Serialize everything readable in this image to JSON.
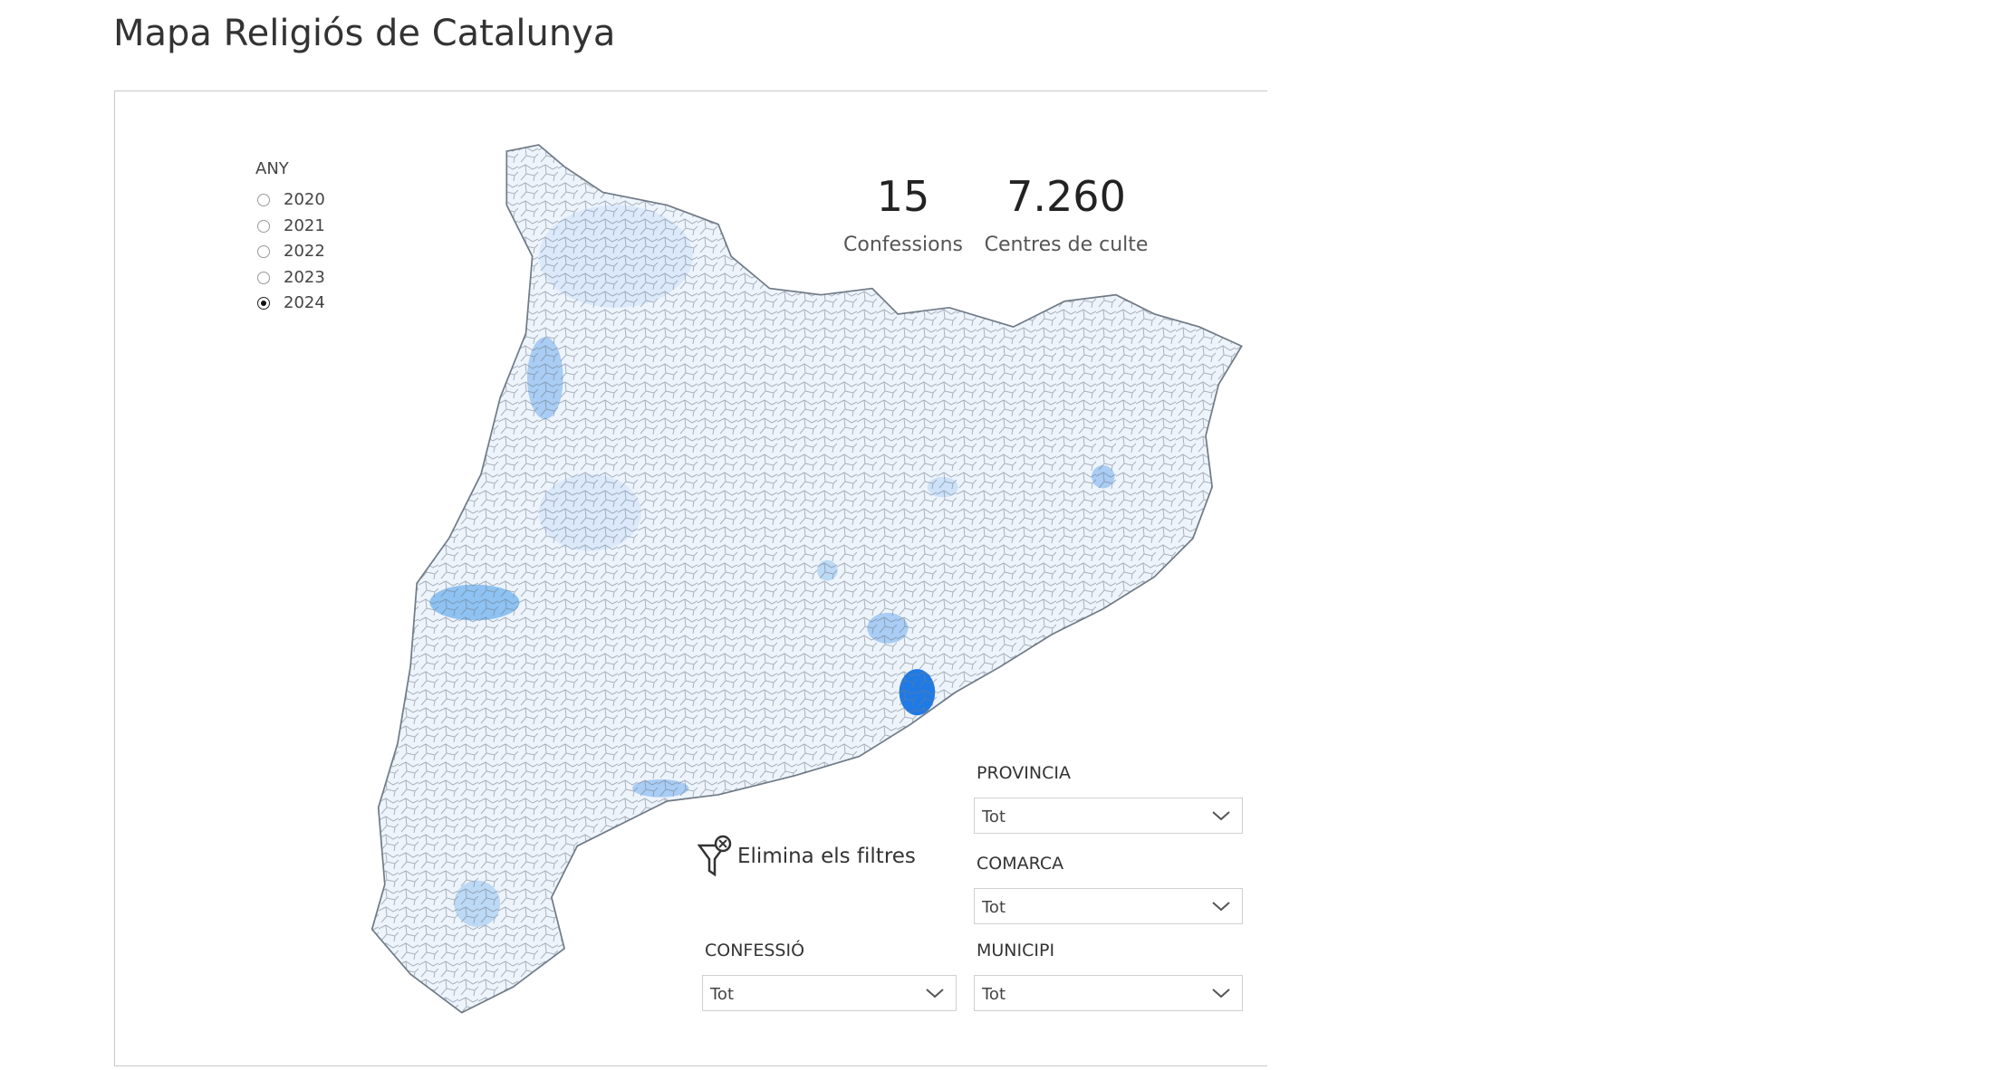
{
  "header": {
    "title": "Mapa Religiós de Catalunya"
  },
  "year_filter": {
    "label": "ANY",
    "options": [
      "2020",
      "2021",
      "2022",
      "2023",
      "2024"
    ],
    "selected_index": 4
  },
  "kpis": [
    {
      "value": "15",
      "label": "Confessions"
    },
    {
      "value": "7.260",
      "label": "Centres de culte"
    }
  ],
  "clear_filters": {
    "label": "Elimina els filtres"
  },
  "dropdowns": [
    {
      "label": "PROVINCIA",
      "value": "Tot"
    },
    {
      "label": "COMARCA",
      "value": "Tot"
    },
    {
      "label": "CONFESSIÓ",
      "value": "Tot"
    },
    {
      "label": "MUNICIPI",
      "value": "Tot"
    }
  ]
}
